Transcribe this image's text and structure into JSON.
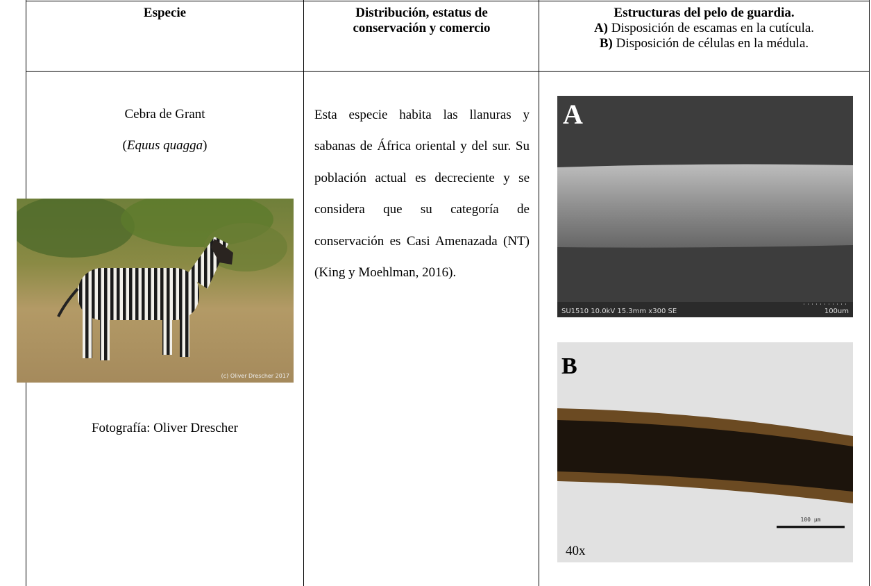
{
  "table": {
    "header": [
      "Especie",
      "Distribución, estatus de conservación y comercio",
      {
        "title": "Estructuras del pelo de guardia.",
        "items": [
          {
            "key": "A)",
            "text": "Disposición de escamas en la cutícula."
          },
          {
            "key": "B)",
            "text": "Disposición de células en la médula."
          }
        ]
      }
    ],
    "row": {
      "common_name": "Cebra de Grant",
      "scientific_name": "Equus quagga",
      "photo_watermark": "(c) Oliver Drescher 2017",
      "photo_credit": "Fotografía: Oliver Drescher",
      "description": "Esta especie habita las llanuras y sabanas de África oriental y del sur. Su población actual es decreciente y se considera que su categoría de conservación es Casi Amenazada (NT) (King y Moehlman, 2016).",
      "image_a": {
        "letter": "A",
        "info": "SU1510 10.0kV 15.3mm x300 SE",
        "scale": "100um"
      },
      "image_b": {
        "letter": "B",
        "scale": "100 µm",
        "magnification": "40x"
      }
    }
  }
}
